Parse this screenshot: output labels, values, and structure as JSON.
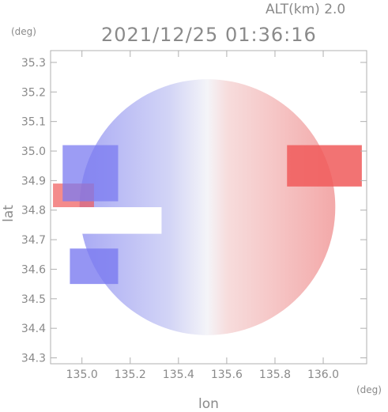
{
  "header": {
    "altitude": "ALT(km) 2.0",
    "timestamp": "2021/12/25 01:36:16"
  },
  "colors": {
    "approaching": "#7b7bf0",
    "receding": "#f05a5a",
    "neutral": "#f4f4f8",
    "frame": "#b0b0b0",
    "text": "#8a8a8a"
  },
  "chart_data": {
    "type": "heatmap",
    "title": "2021/12/25 01:36:16",
    "subtitle": "ALT(km) 2.0",
    "xlabel": "lon",
    "ylabel": "lat",
    "x_unit": "(deg)",
    "y_unit": "(deg)",
    "xlim": [
      134.87,
      136.18
    ],
    "ylim": [
      34.28,
      35.34
    ],
    "xticks": [
      135.0,
      135.2,
      135.4,
      135.6,
      135.8,
      136.0
    ],
    "xtick_labels": [
      "135.0",
      "135.2",
      "135.4",
      "135.6",
      "135.8",
      "136.0"
    ],
    "yticks": [
      34.3,
      34.4,
      34.5,
      34.6,
      34.7,
      34.8,
      34.9,
      35.0,
      35.1,
      35.2,
      35.3
    ],
    "ytick_labels": [
      "34.3",
      "34.4",
      "34.5",
      "34.6",
      "34.7",
      "34.8",
      "34.9",
      "35.0",
      "35.1",
      "35.2",
      "35.3"
    ],
    "grid": false,
    "legend": "none",
    "radar_center": [
      135.52,
      34.81
    ],
    "radar_radius_deg": 0.53,
    "velocity_pattern": "approaching (blue) west of center, receding (red) east of center",
    "features": [
      {
        "kind": "strong_receding",
        "lon": [
          135.85,
          136.16
        ],
        "lat": [
          34.88,
          35.02
        ],
        "level": 0.85
      },
      {
        "kind": "strong_receding",
        "lon": [
          134.88,
          135.05
        ],
        "lat": [
          34.81,
          34.89
        ],
        "level": 0.7
      },
      {
        "kind": "strong_approaching",
        "lon": [
          134.95,
          135.15
        ],
        "lat": [
          34.55,
          34.67
        ],
        "level": 0.8
      },
      {
        "kind": "strong_approaching",
        "lon": [
          134.92,
          135.15
        ],
        "lat": [
          34.83,
          35.02
        ],
        "level": 0.75
      },
      {
        "kind": "missing_sector",
        "lon": [
          134.87,
          135.33
        ],
        "lat": [
          34.72,
          34.81
        ]
      }
    ]
  }
}
